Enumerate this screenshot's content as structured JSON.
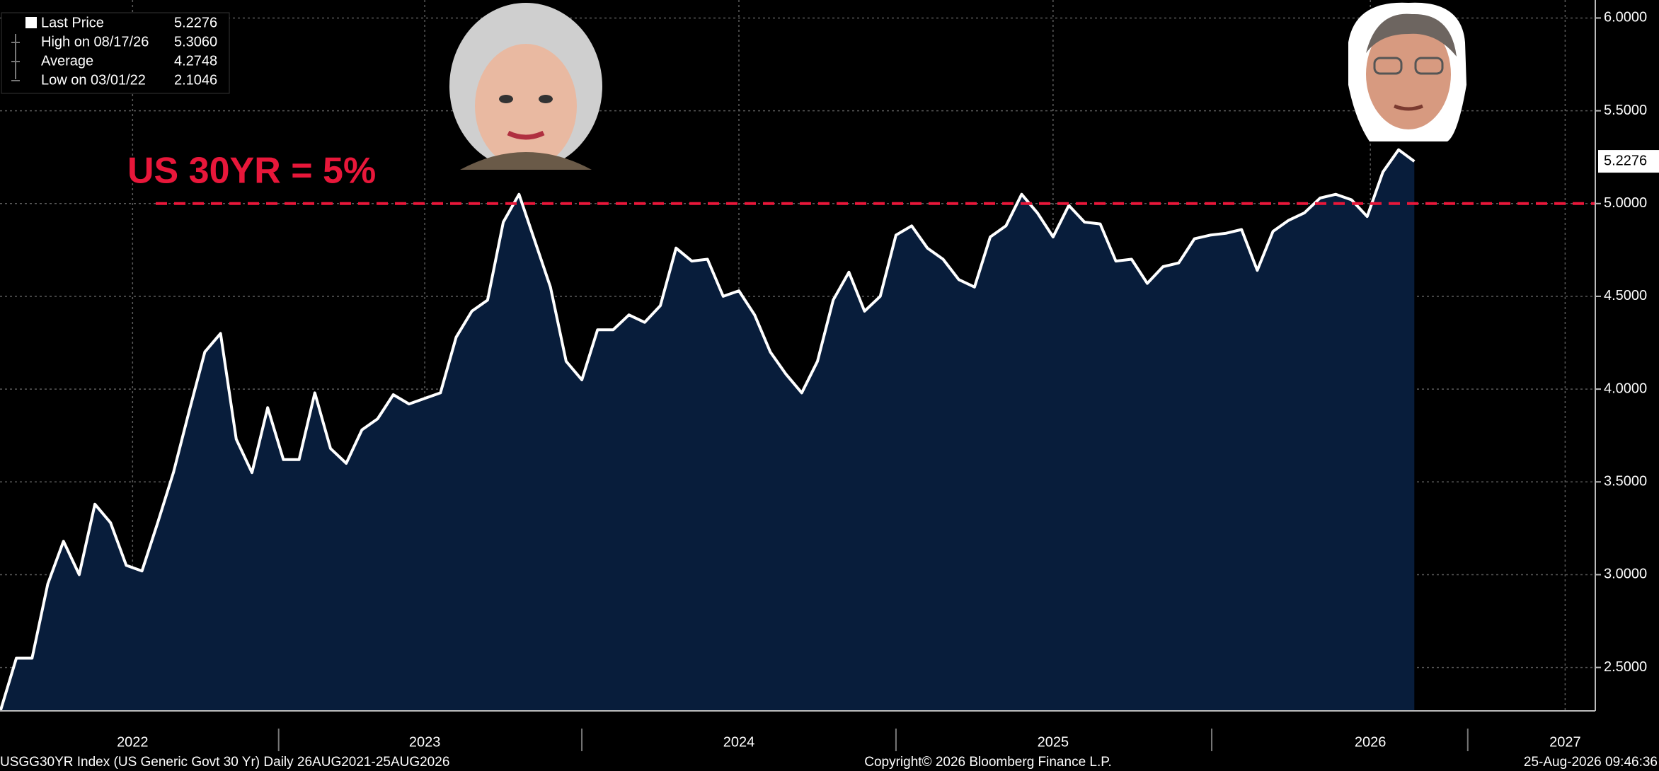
{
  "chart_data": {
    "type": "area",
    "series": [
      {
        "name": "Last Price",
        "color": "#ffffff",
        "fill": "#081d3b",
        "values": [
          2.27,
          2.55,
          2.55,
          2.95,
          3.18,
          3.0,
          3.38,
          3.28,
          3.05,
          3.02,
          3.28,
          3.55,
          3.88,
          4.2,
          4.3,
          3.73,
          3.55,
          3.9,
          3.62,
          3.62,
          3.98,
          3.68,
          3.6,
          3.78,
          3.84,
          3.97,
          3.92,
          3.95,
          3.98,
          4.28,
          4.42,
          4.48,
          4.9,
          5.05,
          4.8,
          4.55,
          4.15,
          4.05,
          4.32,
          4.32,
          4.4,
          4.36,
          4.45,
          4.76,
          4.69,
          4.7,
          4.5,
          4.53,
          4.4,
          4.2,
          4.08,
          3.98,
          4.15,
          4.48,
          4.63,
          4.42,
          4.5,
          4.83,
          4.88,
          4.76,
          4.7,
          4.59,
          4.55,
          4.82,
          4.88,
          5.05,
          4.95,
          4.82,
          4.99,
          4.9,
          4.89,
          4.69,
          4.7,
          4.57,
          4.66,
          4.68,
          4.81,
          4.83,
          4.84,
          4.86,
          4.64,
          4.85,
          4.91,
          4.95,
          5.03,
          5.05,
          5.02,
          4.93,
          5.17,
          5.29,
          5.2276
        ]
      }
    ],
    "x": [
      2022.15,
      2022.2,
      2022.25,
      2022.3,
      2022.35,
      2022.4,
      2022.45,
      2022.5,
      2022.55,
      2022.6,
      2022.65,
      2022.7,
      2022.75,
      2022.8,
      2022.85,
      2022.9,
      2022.95,
      2023.0,
      2023.05,
      2023.1,
      2023.15,
      2023.2,
      2023.25,
      2023.3,
      2023.35,
      2023.4,
      2023.45,
      2023.5,
      2023.55,
      2023.6,
      2023.65,
      2023.7,
      2023.75,
      2023.8,
      2023.85,
      2023.9,
      2023.95,
      2024.0,
      2024.05,
      2024.1,
      2024.15,
      2024.2,
      2024.25,
      2024.3,
      2024.35,
      2024.4,
      2024.45,
      2024.5,
      2024.55,
      2024.6,
      2024.65,
      2024.7,
      2024.75,
      2024.8,
      2024.85,
      2024.9,
      2024.95,
      2025.0,
      2025.05,
      2025.1,
      2025.15,
      2025.2,
      2025.25,
      2025.3,
      2025.35,
      2025.4,
      2025.45,
      2025.5,
      2025.55,
      2025.6,
      2025.65,
      2025.7,
      2025.75,
      2025.8,
      2025.85,
      2025.9,
      2025.95,
      2026.0,
      2026.05,
      2026.1,
      2026.15,
      2026.2,
      2026.25,
      2026.3,
      2026.35,
      2026.4,
      2026.45,
      2026.5,
      2026.55,
      2026.6,
      2026.65
    ],
    "xlim": [
      2022.148,
      2027.226
    ],
    "xticks": [
      {
        "value": 2022.57,
        "label": "2022"
      },
      {
        "value": 2023.5,
        "label": "2023"
      },
      {
        "value": 2024.5,
        "label": "2024"
      },
      {
        "value": 2025.5,
        "label": "2025"
      },
      {
        "value": 2026.51,
        "label": "2026"
      },
      {
        "value": 2027.13,
        "label": "2027"
      }
    ],
    "ylim": [
      2.266,
      6.097
    ],
    "yticks": [
      {
        "value": 2.5,
        "label": "2.5000"
      },
      {
        "value": 3,
        "label": "3.0000"
      },
      {
        "value": 3.5,
        "label": "3.5000"
      },
      {
        "value": 4,
        "label": "4.0000"
      },
      {
        "value": 4.5,
        "label": "4.5000"
      },
      {
        "value": 5,
        "label": "5.0000"
      },
      {
        "value": 5.5,
        "label": "5.5000"
      },
      {
        "value": 6,
        "label": "6.0000"
      }
    ],
    "grid": true,
    "last_value_label": "5.2276",
    "stats": [
      {
        "label": "High on 08/17/26",
        "value": "5.3060"
      },
      {
        "label": "Average",
        "value": "4.2748"
      },
      {
        "label": "Low on 03/01/22",
        "value": "2.1046"
      }
    ],
    "reference_line": {
      "value": 5,
      "color": "#e8173a",
      "label": "US 30YR = 5%"
    },
    "footer": {
      "left": "USGG30YR Index (US Generic Govt 30 Yr) Daily 26AUG2021-25AUG2026",
      "center": "Copyright© 2026 Bloomberg Finance L.P.",
      "right": "25-Aug-2026 09:46:36"
    }
  }
}
